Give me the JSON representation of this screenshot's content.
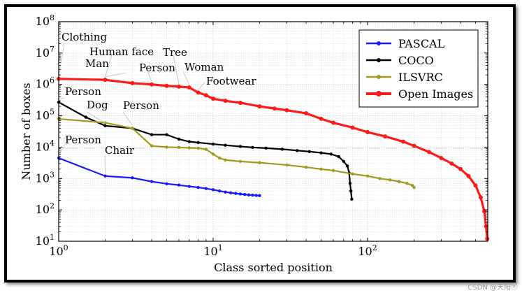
{
  "chart_data": {
    "type": "line",
    "xscale": "log",
    "yscale": "log",
    "xlim": [
      1,
      600
    ],
    "ylim": [
      10,
      100000000
    ],
    "xlabel": "Class sorted position",
    "ylabel": "Number of boxes",
    "x_ticks": [
      {
        "value": 1,
        "label": "10^0"
      },
      {
        "value": 10,
        "label": "10^1"
      },
      {
        "value": 100,
        "label": "10^2"
      }
    ],
    "y_ticks": [
      {
        "value": 10,
        "label": "10^1"
      },
      {
        "value": 100,
        "label": "10^2"
      },
      {
        "value": 1000,
        "label": "10^3"
      },
      {
        "value": 10000,
        "label": "10^4"
      },
      {
        "value": 100000,
        "label": "10^5"
      },
      {
        "value": 1000000,
        "label": "10^6"
      },
      {
        "value": 10000000,
        "label": "10^7"
      },
      {
        "value": 100000000,
        "label": "10^8"
      }
    ],
    "grid": true,
    "legend_position": "top-right",
    "series": [
      {
        "name": "PASCAL",
        "color": "#1a1aff",
        "marker": "circle",
        "points": [
          [
            1,
            4500
          ],
          [
            2,
            1200
          ],
          [
            3,
            1050
          ],
          [
            4,
            800
          ],
          [
            5,
            680
          ],
          [
            6,
            620
          ],
          [
            7,
            560
          ],
          [
            8,
            520
          ],
          [
            9,
            480
          ],
          [
            10,
            440
          ],
          [
            11,
            400
          ],
          [
            12,
            370
          ],
          [
            13,
            350
          ],
          [
            14,
            335
          ],
          [
            15,
            320
          ],
          [
            16,
            310
          ],
          [
            17,
            300
          ],
          [
            18,
            295
          ],
          [
            19,
            290
          ],
          [
            20,
            285
          ]
        ]
      },
      {
        "name": "COCO",
        "color": "#000000",
        "marker": "circle",
        "points": [
          [
            1,
            270000
          ],
          [
            1.5,
            90000
          ],
          [
            2,
            48000
          ],
          [
            3,
            40000
          ],
          [
            4,
            25000
          ],
          [
            5,
            25000
          ],
          [
            6,
            18000
          ],
          [
            7,
            15000
          ],
          [
            8,
            14000
          ],
          [
            10,
            12500
          ],
          [
            12,
            11500
          ],
          [
            15,
            10500
          ],
          [
            18,
            9800
          ],
          [
            22,
            9300
          ],
          [
            28,
            8600
          ],
          [
            35,
            7800
          ],
          [
            42,
            7200
          ],
          [
            50,
            6600
          ],
          [
            58,
            6000
          ],
          [
            65,
            5000
          ],
          [
            70,
            3500
          ],
          [
            74,
            2500
          ],
          [
            76,
            1500
          ],
          [
            77,
            700
          ],
          [
            78,
            400
          ],
          [
            79,
            220
          ]
        ]
      },
      {
        "name": "ILSVRC",
        "color": "#a09a20",
        "marker": "circle",
        "points": [
          [
            1,
            80000
          ],
          [
            2,
            60000
          ],
          [
            3,
            40000
          ],
          [
            4,
            11000
          ],
          [
            5,
            10000
          ],
          [
            6,
            9800
          ],
          [
            7,
            9500
          ],
          [
            8,
            9300
          ],
          [
            9,
            8500
          ],
          [
            10,
            6000
          ],
          [
            11,
            4500
          ],
          [
            12,
            3900
          ],
          [
            15,
            3500
          ],
          [
            20,
            3200
          ],
          [
            30,
            2700
          ],
          [
            40,
            2300
          ],
          [
            50,
            2000
          ],
          [
            60,
            1800
          ],
          [
            80,
            1400
          ],
          [
            100,
            1200
          ],
          [
            120,
            1000
          ],
          [
            140,
            900
          ],
          [
            160,
            800
          ],
          [
            180,
            700
          ],
          [
            195,
            600
          ],
          [
            200,
            520
          ]
        ]
      },
      {
        "name": "Open Images",
        "color": "#ff1a1a",
        "marker": "circle",
        "points": [
          [
            1,
            1500000
          ],
          [
            2,
            1400000
          ],
          [
            3,
            1100000
          ],
          [
            4,
            1000000
          ],
          [
            5,
            900000
          ],
          [
            6,
            850000
          ],
          [
            7,
            800000
          ],
          [
            8,
            550000
          ],
          [
            9,
            450000
          ],
          [
            10,
            350000
          ],
          [
            12,
            300000
          ],
          [
            15,
            260000
          ],
          [
            20,
            200000
          ],
          [
            25,
            170000
          ],
          [
            30,
            150000
          ],
          [
            40,
            120000
          ],
          [
            50,
            80000
          ],
          [
            60,
            60000
          ],
          [
            80,
            42000
          ],
          [
            100,
            30000
          ],
          [
            130,
            22000
          ],
          [
            170,
            15000
          ],
          [
            200,
            11000
          ],
          [
            250,
            7000
          ],
          [
            300,
            4500
          ],
          [
            350,
            3000
          ],
          [
            400,
            2000
          ],
          [
            450,
            1200
          ],
          [
            500,
            600
          ],
          [
            540,
            250
          ],
          [
            570,
            90
          ],
          [
            585,
            30
          ],
          [
            595,
            12
          ]
        ]
      }
    ],
    "annotations": [
      {
        "text": "Clothing",
        "x": 1,
        "y": 1500000
      },
      {
        "text": "Human face",
        "x": 2,
        "y": 1400000
      },
      {
        "text": "Man",
        "x": 2,
        "y": 1400000
      },
      {
        "text": "Tree",
        "x": 6,
        "y": 850000
      },
      {
        "text": "Person",
        "x": 4,
        "y": 1000000
      },
      {
        "text": "Woman",
        "x": 7,
        "y": 800000
      },
      {
        "text": "Footwear",
        "x": 8,
        "y": 550000
      },
      {
        "text": "Person",
        "x": 1,
        "y": 270000
      },
      {
        "text": "Dog",
        "x": 2,
        "y": 48000
      },
      {
        "text": "Person",
        "x": 3,
        "y": 40000
      },
      {
        "text": "Person",
        "x": 1,
        "y": 4500
      },
      {
        "text": "Chair",
        "x": 2,
        "y": 1200
      }
    ]
  },
  "watermark": "CSDN @天阳ⓔ"
}
